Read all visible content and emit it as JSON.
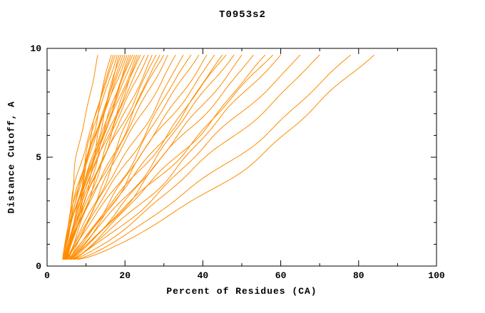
{
  "chart_data": {
    "type": "line",
    "title": "T0953s2",
    "xlabel": "Percent of Residues (CA)",
    "ylabel": "Distance Cutoff, A",
    "xlim": [
      0,
      100
    ],
    "ylim": [
      0,
      10
    ],
    "x_ticks": [
      0,
      20,
      40,
      60,
      80,
      100
    ],
    "y_ticks": [
      0,
      5,
      10
    ],
    "x_minor_step": 10,
    "y_minor_step": 1,
    "grid": false,
    "legend": "none",
    "axis_color": "#000000",
    "series_color": "#ff8c00",
    "y_draw_min": 0.3,
    "y_draw_max": 9.7,
    "curves": [
      {
        "x_start": 4.5,
        "x_end": 13.0,
        "shape": 1.3
      },
      {
        "x_start": 4.0,
        "x_end": 16.5,
        "shape": 1.25
      },
      {
        "x_start": 4.2,
        "x_end": 17.0,
        "shape": 1.15
      },
      {
        "x_start": 4.5,
        "x_end": 17.5,
        "shape": 1.3
      },
      {
        "x_start": 4.0,
        "x_end": 18.0,
        "shape": 1.2
      },
      {
        "x_start": 4.8,
        "x_end": 18.5,
        "shape": 1.1
      },
      {
        "x_start": 4.2,
        "x_end": 19.0,
        "shape": 1.25
      },
      {
        "x_start": 4.5,
        "x_end": 19.5,
        "shape": 1.15
      },
      {
        "x_start": 5.0,
        "x_end": 20.0,
        "shape": 1.2
      },
      {
        "x_start": 4.3,
        "x_end": 20.5,
        "shape": 1.3
      },
      {
        "x_start": 4.6,
        "x_end": 21.0,
        "shape": 1.1
      },
      {
        "x_start": 5.0,
        "x_end": 21.5,
        "shape": 1.2
      },
      {
        "x_start": 4.4,
        "x_end": 22.0,
        "shape": 1.25
      },
      {
        "x_start": 4.7,
        "x_end": 22.5,
        "shape": 1.15
      },
      {
        "x_start": 5.2,
        "x_end": 23.0,
        "shape": 1.2
      },
      {
        "x_start": 4.5,
        "x_end": 23.5,
        "shape": 1.1
      },
      {
        "x_start": 5.0,
        "x_end": 24.0,
        "shape": 1.25
      },
      {
        "x_start": 4.8,
        "x_end": 25.0,
        "shape": 1.15
      },
      {
        "x_start": 5.3,
        "x_end": 26.0,
        "shape": 1.2
      },
      {
        "x_start": 4.6,
        "x_end": 27.0,
        "shape": 1.1
      },
      {
        "x_start": 5.0,
        "x_end": 28.0,
        "shape": 1.2
      },
      {
        "x_start": 5.5,
        "x_end": 29.0,
        "shape": 1.1
      },
      {
        "x_start": 4.8,
        "x_end": 30.0,
        "shape": 1.15
      },
      {
        "x_start": 5.2,
        "x_end": 31.0,
        "shape": 1.05
      },
      {
        "x_start": 5.5,
        "x_end": 33.0,
        "shape": 1.1
      },
      {
        "x_start": 5.0,
        "x_end": 35.0,
        "shape": 1.0
      },
      {
        "x_start": 5.8,
        "x_end": 37.0,
        "shape": 1.05
      },
      {
        "x_start": 5.2,
        "x_end": 39.0,
        "shape": 1.0
      },
      {
        "x_start": 6.0,
        "x_end": 41.0,
        "shape": 0.95
      },
      {
        "x_start": 5.5,
        "x_end": 43.0,
        "shape": 1.0
      },
      {
        "x_start": 6.2,
        "x_end": 45.0,
        "shape": 0.95
      },
      {
        "x_start": 5.8,
        "x_end": 46.0,
        "shape": 1.0
      },
      {
        "x_start": 6.0,
        "x_end": 48.0,
        "shape": 0.95
      },
      {
        "x_start": 6.5,
        "x_end": 50.0,
        "shape": 0.9
      },
      {
        "x_start": 6.0,
        "x_end": 53.0,
        "shape": 0.95
      },
      {
        "x_start": 6.8,
        "x_end": 56.0,
        "shape": 0.9
      },
      {
        "x_start": 6.2,
        "x_end": 58.0,
        "shape": 0.95
      },
      {
        "x_start": 7.0,
        "x_end": 60.0,
        "shape": 0.9
      },
      {
        "x_start": 6.5,
        "x_end": 65.0,
        "shape": 0.88
      },
      {
        "x_start": 7.0,
        "x_end": 70.0,
        "shape": 0.85
      },
      {
        "x_start": 7.5,
        "x_end": 78.0,
        "shape": 0.8
      },
      {
        "x_start": 8.0,
        "x_end": 84.0,
        "shape": 0.75
      }
    ]
  }
}
